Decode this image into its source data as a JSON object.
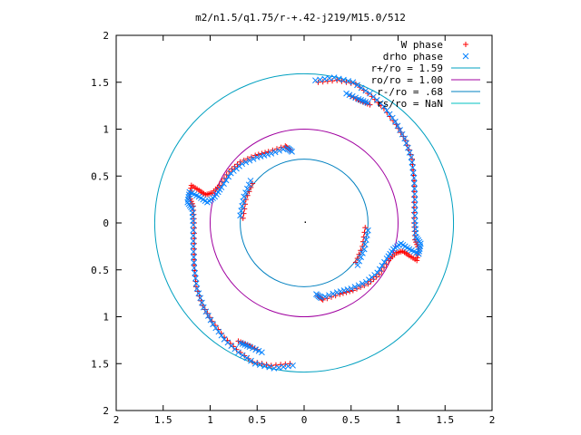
{
  "chart_data": {
    "type": "scatter",
    "title": "m2/n1.5/q1.75/r-+.42-j219/M15.0/512",
    "xlabel": "",
    "ylabel": "",
    "xlim": [
      -2,
      2
    ],
    "ylim": [
      -2,
      2
    ],
    "x_ticks": [
      -2,
      -1.5,
      -1,
      -0.5,
      0,
      0.5,
      1,
      1.5,
      2
    ],
    "y_ticks": [
      -2,
      -1.5,
      -1,
      -0.5,
      0,
      0.5,
      1,
      1.5,
      2
    ],
    "x_tick_labels": [
      "2",
      "1.5",
      "1",
      "0.5",
      "0",
      "0.5",
      "1",
      "1.5",
      "2"
    ],
    "y_tick_labels": [
      "2",
      "1.5",
      "1",
      "0.5",
      "0",
      "0.5",
      "1",
      "1.5",
      "2"
    ],
    "grid": false,
    "legend_position": "top-right",
    "legend": [
      {
        "label": "W phase",
        "marker": "+",
        "color": "#ff0000"
      },
      {
        "label": "drho phase",
        "marker": "x",
        "color": "#0080ff"
      },
      {
        "label": "r+/ro = 1.59",
        "line": true,
        "color": "#00a0c0"
      },
      {
        "label": "ro/ro = 1.00",
        "line": true,
        "color": "#a000a0"
      },
      {
        "label": "r-/ro = .68",
        "line": true,
        "color": "#0080c0"
      },
      {
        "label": "rs/ro = NaN",
        "line": true,
        "color": "#00c0c0"
      }
    ],
    "circles": [
      {
        "name": "r+/ro = 1.59",
        "r": 1.59,
        "color": "#00a0c0"
      },
      {
        "name": "ro/ro = 1.00",
        "r": 1.0,
        "color": "#a000a0"
      },
      {
        "name": "r-/ro = .68",
        "r": 0.68,
        "color": "#0080c0"
      }
    ],
    "series": [
      {
        "name": "W phase",
        "color": "#ff0000",
        "marker": "+",
        "arms": [
          [
            [
              0.15,
              1.5
            ],
            [
              0.35,
              1.52
            ],
            [
              0.55,
              1.48
            ],
            [
              0.72,
              1.35
            ],
            [
              0.85,
              1.22
            ],
            [
              0.98,
              1.05
            ],
            [
              1.08,
              0.88
            ],
            [
              1.15,
              0.68
            ],
            [
              1.17,
              0.45
            ],
            [
              1.17,
              0.22
            ],
            [
              1.17,
              0.0
            ],
            [
              1.18,
              -0.18
            ],
            [
              1.22,
              -0.28
            ],
            [
              1.2,
              -0.4
            ],
            [
              1.12,
              -0.35
            ],
            [
              1.05,
              -0.3
            ],
            [
              0.98,
              -0.32
            ],
            [
              0.9,
              -0.4
            ],
            [
              0.8,
              -0.55
            ],
            [
              0.68,
              -0.65
            ],
            [
              0.52,
              -0.72
            ],
            [
              0.38,
              -0.76
            ],
            [
              0.2,
              -0.82
            ],
            [
              0.15,
              -0.78
            ]
          ],
          [
            [
              0.65,
              -0.05
            ],
            [
              0.62,
              -0.25
            ],
            [
              0.55,
              -0.42
            ]
          ],
          [
            [
              -0.15,
              -1.5
            ],
            [
              -0.35,
              -1.52
            ],
            [
              -0.55,
              -1.48
            ],
            [
              -0.72,
              -1.35
            ],
            [
              -0.85,
              -1.22
            ],
            [
              -0.98,
              -1.05
            ],
            [
              -1.08,
              -0.88
            ],
            [
              -1.15,
              -0.68
            ],
            [
              -1.17,
              -0.45
            ],
            [
              -1.17,
              -0.22
            ],
            [
              -1.17,
              0.0
            ],
            [
              -1.18,
              0.18
            ],
            [
              -1.22,
              0.28
            ],
            [
              -1.2,
              0.4
            ],
            [
              -1.12,
              0.35
            ],
            [
              -1.05,
              0.3
            ],
            [
              -0.98,
              0.32
            ],
            [
              -0.9,
              0.4
            ],
            [
              -0.8,
              0.55
            ],
            [
              -0.68,
              0.65
            ],
            [
              -0.52,
              0.72
            ],
            [
              -0.38,
              0.76
            ],
            [
              -0.2,
              0.82
            ],
            [
              -0.15,
              0.78
            ]
          ],
          [
            [
              -0.65,
              0.05
            ],
            [
              -0.62,
              0.25
            ],
            [
              -0.55,
              0.42
            ]
          ],
          [
            [
              0.5,
              1.35
            ],
            [
              0.6,
              1.3
            ],
            [
              0.7,
              1.26
            ]
          ],
          [
            [
              -0.5,
              -1.35
            ],
            [
              -0.6,
              -1.3
            ],
            [
              -0.7,
              -1.26
            ]
          ]
        ]
      },
      {
        "name": "drho phase",
        "color": "#0080ff",
        "marker": "x",
        "arms": [
          [
            [
              0.12,
              1.52
            ],
            [
              0.32,
              1.55
            ],
            [
              0.52,
              1.5
            ],
            [
              0.7,
              1.38
            ],
            [
              0.85,
              1.24
            ],
            [
              0.97,
              1.08
            ],
            [
              1.07,
              0.9
            ],
            [
              1.14,
              0.7
            ],
            [
              1.17,
              0.48
            ],
            [
              1.18,
              0.25
            ],
            [
              1.18,
              0.02
            ],
            [
              1.19,
              -0.15
            ],
            [
              1.24,
              -0.22
            ],
            [
              1.22,
              -0.33
            ],
            [
              1.12,
              -0.28
            ],
            [
              1.03,
              -0.22
            ],
            [
              0.95,
              -0.28
            ],
            [
              0.88,
              -0.38
            ],
            [
              0.78,
              -0.53
            ],
            [
              0.66,
              -0.63
            ],
            [
              0.5,
              -0.7
            ],
            [
              0.35,
              -0.74
            ],
            [
              0.18,
              -0.8
            ],
            [
              0.13,
              -0.76
            ]
          ],
          [
            [
              0.68,
              -0.08
            ],
            [
              0.64,
              -0.28
            ],
            [
              0.57,
              -0.45
            ]
          ],
          [
            [
              -0.12,
              -1.52
            ],
            [
              -0.32,
              -1.55
            ],
            [
              -0.52,
              -1.5
            ],
            [
              -0.7,
              -1.38
            ],
            [
              -0.85,
              -1.24
            ],
            [
              -0.97,
              -1.08
            ],
            [
              -1.07,
              -0.9
            ],
            [
              -1.14,
              -0.7
            ],
            [
              -1.17,
              -0.48
            ],
            [
              -1.18,
              -0.25
            ],
            [
              -1.18,
              -0.02
            ],
            [
              -1.19,
              0.15
            ],
            [
              -1.24,
              0.22
            ],
            [
              -1.22,
              0.33
            ],
            [
              -1.12,
              0.28
            ],
            [
              -1.03,
              0.22
            ],
            [
              -0.95,
              0.28
            ],
            [
              -0.88,
              0.38
            ],
            [
              -0.78,
              0.53
            ],
            [
              -0.66,
              0.63
            ],
            [
              -0.5,
              0.7
            ],
            [
              -0.35,
              0.74
            ],
            [
              -0.18,
              0.8
            ],
            [
              -0.13,
              0.76
            ]
          ],
          [
            [
              -0.68,
              0.08
            ],
            [
              -0.64,
              0.28
            ],
            [
              -0.57,
              0.45
            ]
          ],
          [
            [
              0.45,
              1.38
            ],
            [
              0.58,
              1.32
            ],
            [
              0.68,
              1.28
            ]
          ],
          [
            [
              -0.45,
              -1.38
            ],
            [
              -0.58,
              -1.32
            ],
            [
              -0.68,
              -1.28
            ]
          ]
        ]
      }
    ]
  }
}
